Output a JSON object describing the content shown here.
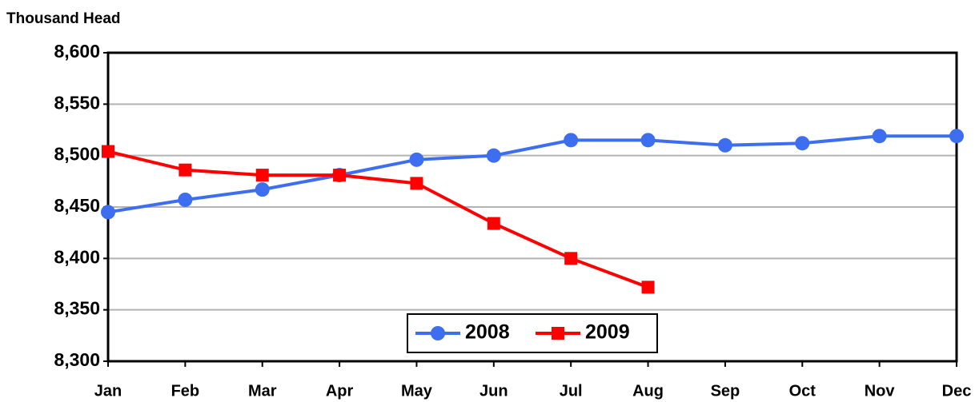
{
  "chart_data": {
    "type": "line",
    "y_label": "Thousand Head",
    "categories": [
      "Jan",
      "Feb",
      "Mar",
      "Apr",
      "May",
      "Jun",
      "Jul",
      "Aug",
      "Sep",
      "Oct",
      "Nov",
      "Dec"
    ],
    "series": [
      {
        "name": "2008",
        "color": "#3d6ef0",
        "marker": "circle",
        "values": [
          8445,
          8457,
          8467,
          8481,
          8496,
          8500,
          8515,
          8515,
          8510,
          8512,
          8519,
          8519
        ]
      },
      {
        "name": "2009",
        "color": "#ff0000",
        "marker": "square",
        "values": [
          8504,
          8486,
          8481,
          8481,
          8473,
          8434,
          8400,
          8372,
          null,
          null,
          null,
          null
        ]
      }
    ],
    "ylim": [
      8300,
      8600
    ],
    "yticks": [
      {
        "value": 8300,
        "label": "8,300"
      },
      {
        "value": 8350,
        "label": "8,350"
      },
      {
        "value": 8400,
        "label": "8,400"
      },
      {
        "value": 8450,
        "label": "8,450"
      },
      {
        "value": 8500,
        "label": "8,500"
      },
      {
        "value": 8550,
        "label": "8,550"
      },
      {
        "value": 8600,
        "label": "8,600"
      }
    ],
    "grid": true,
    "legend": "lower center"
  }
}
